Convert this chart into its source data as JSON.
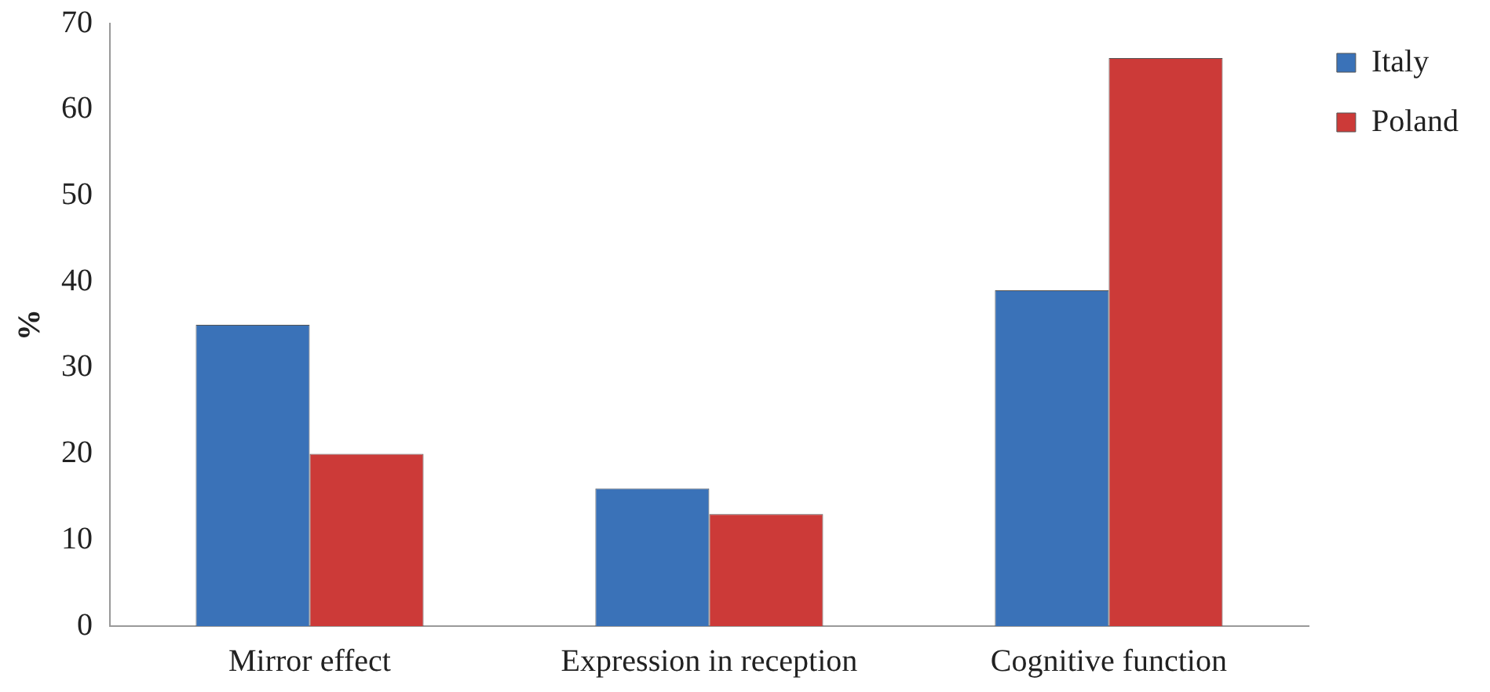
{
  "chart_data": {
    "type": "bar",
    "ylabel": "%",
    "categories": [
      "Mirror effect",
      "Expression in reception",
      "Cognitive function"
    ],
    "series": [
      {
        "name": "Italy",
        "color": "#3a72b8",
        "values": [
          35,
          16,
          39
        ]
      },
      {
        "name": "Poland",
        "color": "#cc3a38",
        "values": [
          20,
          13,
          66
        ]
      }
    ],
    "ylim": [
      0,
      70
    ],
    "yticks": [
      0,
      10,
      20,
      30,
      40,
      50,
      60,
      70
    ],
    "grid": false,
    "legend": "top right"
  }
}
